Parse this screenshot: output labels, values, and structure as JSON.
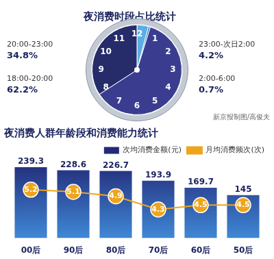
{
  "chart_data": [
    {
      "type": "pie",
      "title": "夜消费时段占比统计",
      "categories": [
        "23:00-次日2:00",
        "2:00-6:00",
        "18:00-20:00",
        "20:00-23:00"
      ],
      "values": [
        4.2,
        0.7,
        62.2,
        34.8
      ],
      "value_labels": [
        "4.2%",
        "0.7%",
        "62.2%",
        "34.8%"
      ],
      "colors": [
        "#5aaee3",
        "#3f7cc6",
        "#3a3d8f",
        "#262b6a"
      ],
      "data_labels": true,
      "dial_numbers": [
        12,
        1,
        2,
        3,
        4,
        5,
        6,
        7,
        8,
        9,
        10,
        11
      ],
      "source": "新京报制图/高俊夫"
    },
    {
      "type": "bar",
      "title": "夜消费人群年龄段和消费能力统计",
      "categories": [
        "00后",
        "90后",
        "80后",
        "70后",
        "60后",
        "50后"
      ],
      "series": [
        {
          "name": "次均消费金额(元)",
          "type": "bar",
          "color": "#232a78",
          "values": [
            239.3,
            228.6,
            226.7,
            193.9,
            169.7,
            145
          ]
        },
        {
          "name": "月均消费频次(次)",
          "type": "line",
          "color": "#eea51c",
          "marker": "circle",
          "axis": "y2",
          "values": [
            5.2,
            5.1,
            4.9,
            4.3,
            4.5,
            4.5
          ]
        }
      ],
      "ylim": [
        0,
        260
      ],
      "yticks": [
        0,
        260
      ],
      "y2lim": [
        3,
        6.5
      ],
      "y2ticks": [
        3,
        6.5
      ],
      "data_labels": true,
      "tick_labels": "x",
      "grid": false,
      "legend": "top-right"
    }
  ]
}
